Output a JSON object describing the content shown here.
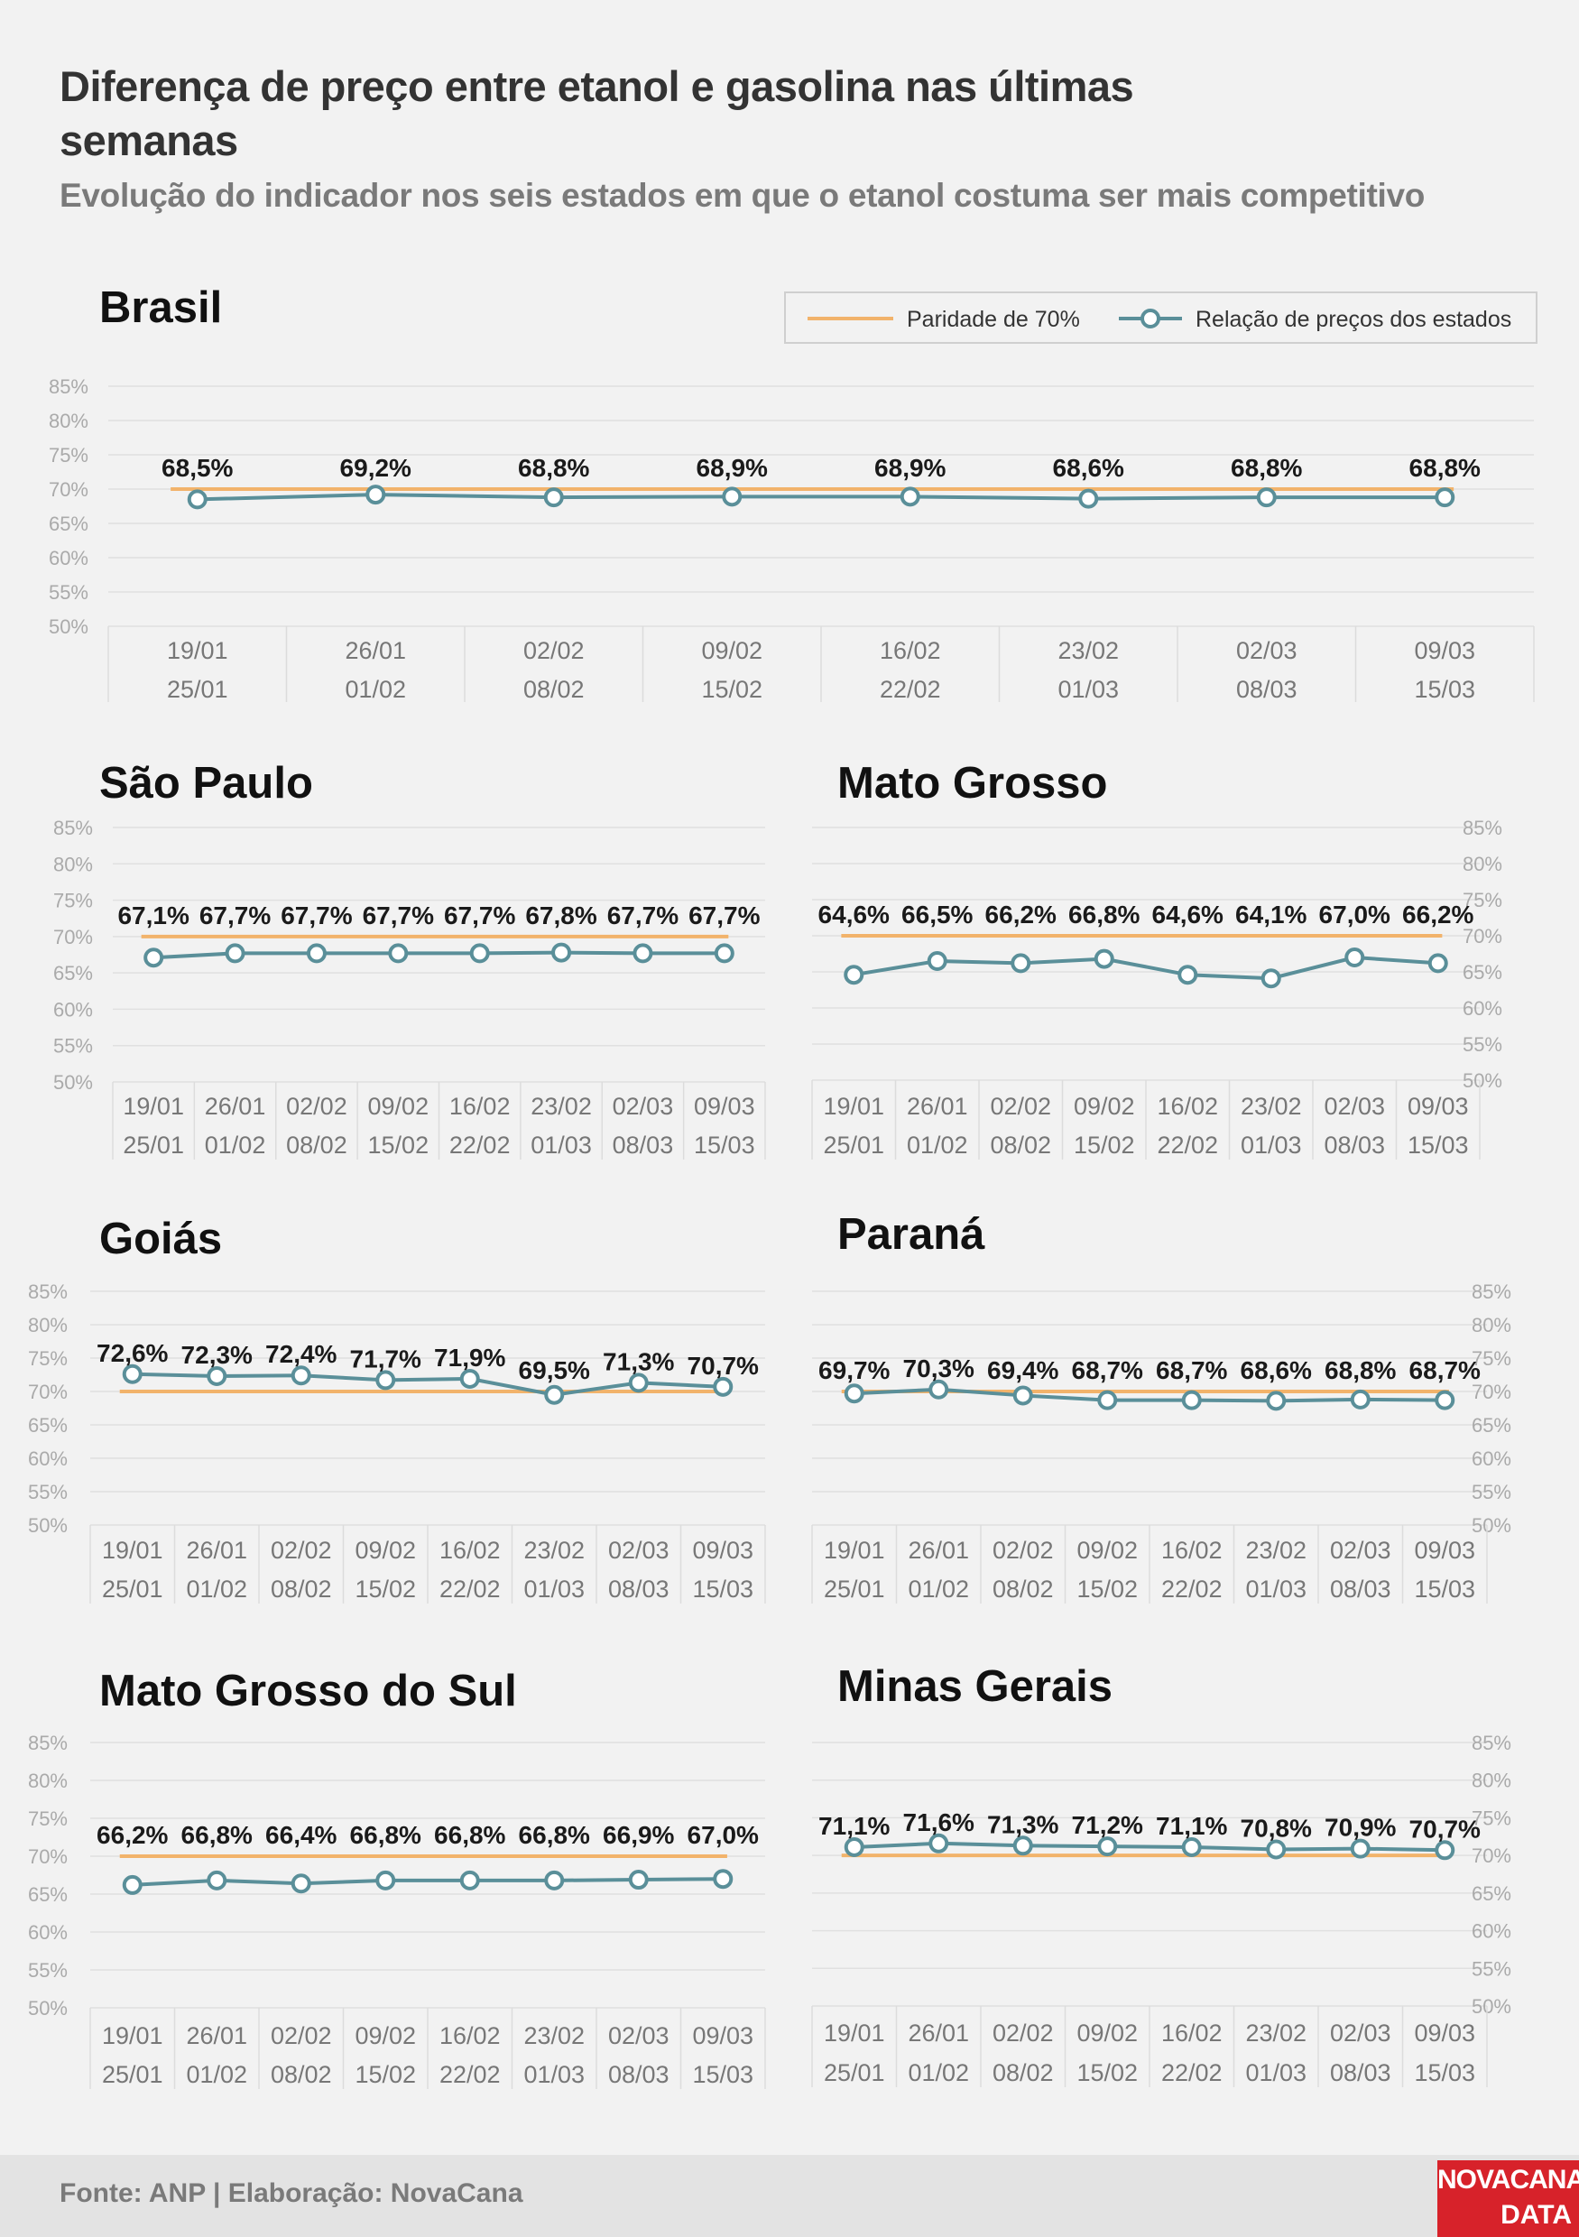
{
  "title": "Diferença de preço entre etanol e gasolina nas últimas semanas",
  "subtitle": "Evolução do indicador nos seis estados em que o etanol costuma ser mais competitivo",
  "legend": {
    "parity": "Paridade de 70%",
    "ratio": "Relação de preços dos estados"
  },
  "footer": {
    "source": "Fonte: ANP | Elaboração: NovaCana",
    "logo_line1": "NOVACANA",
    "logo_line2": "DATA"
  },
  "colors": {
    "parity_line": "#f2b36b",
    "ratio_line": "#5a8f99",
    "background": "#f2f2f2",
    "logo": "#d7222a"
  },
  "chart_data": [
    {
      "type": "line",
      "title": "Brasil",
      "categories": [
        "19/01 25/01",
        "26/01 01/02",
        "02/02 08/02",
        "09/02 15/02",
        "16/02 22/02",
        "23/02 01/03",
        "02/03 08/03",
        "09/03 15/03"
      ],
      "x_top": [
        "19/01",
        "26/01",
        "02/02",
        "09/02",
        "16/02",
        "23/02",
        "02/03",
        "09/03"
      ],
      "x_bottom": [
        "25/01",
        "01/02",
        "08/02",
        "15/02",
        "22/02",
        "01/03",
        "08/03",
        "15/03"
      ],
      "yticks": [
        "85%",
        "80%",
        "75%",
        "70%",
        "65%",
        "60%",
        "55%",
        "50%"
      ],
      "ylim": [
        50,
        85
      ],
      "parity": 70,
      "values": [
        68.5,
        69.2,
        68.8,
        68.9,
        68.9,
        68.6,
        68.8,
        68.8
      ],
      "labels": [
        "68,5%",
        "69,2%",
        "68,8%",
        "68,9%",
        "68,9%",
        "68,6%",
        "68,8%",
        "68,8%"
      ]
    },
    {
      "type": "line",
      "title": "São Paulo",
      "x_top": [
        "19/01",
        "26/01",
        "02/02",
        "09/02",
        "16/02",
        "23/02",
        "02/03",
        "09/03"
      ],
      "x_bottom": [
        "25/01",
        "01/02",
        "08/02",
        "15/02",
        "22/02",
        "01/03",
        "08/03",
        "15/03"
      ],
      "yticks": [
        "85%",
        "80%",
        "75%",
        "70%",
        "65%",
        "60%",
        "55%",
        "50%"
      ],
      "ylim": [
        50,
        85
      ],
      "parity": 70,
      "values": [
        67.1,
        67.7,
        67.7,
        67.7,
        67.7,
        67.8,
        67.7,
        67.7
      ],
      "labels": [
        "67,1%",
        "67,7%",
        "67,7%",
        "67,7%",
        "67,7%",
        "67,8%",
        "67,7%",
        "67,7%"
      ]
    },
    {
      "type": "line",
      "title": "Mato Grosso",
      "x_top": [
        "19/01",
        "26/01",
        "02/02",
        "09/02",
        "16/02",
        "23/02",
        "02/03",
        "09/03"
      ],
      "x_bottom": [
        "25/01",
        "01/02",
        "08/02",
        "15/02",
        "22/02",
        "01/03",
        "08/03",
        "15/03"
      ],
      "yticks": [
        "85%",
        "80%",
        "75%",
        "70%",
        "65%",
        "60%",
        "55%",
        "50%"
      ],
      "ylim": [
        50,
        85
      ],
      "parity": 70,
      "values": [
        64.6,
        66.5,
        66.2,
        66.8,
        64.6,
        64.1,
        67.0,
        66.2
      ],
      "labels": [
        "64,6%",
        "66,5%",
        "66,2%",
        "66,8%",
        "64,6%",
        "64,1%",
        "67,0%",
        "66,2%"
      ]
    },
    {
      "type": "line",
      "title": "Goiás",
      "x_top": [
        "19/01",
        "26/01",
        "02/02",
        "09/02",
        "16/02",
        "23/02",
        "02/03",
        "09/03"
      ],
      "x_bottom": [
        "25/01",
        "01/02",
        "08/02",
        "15/02",
        "22/02",
        "01/03",
        "08/03",
        "15/03"
      ],
      "yticks": [
        "85%",
        "80%",
        "75%",
        "70%",
        "65%",
        "60%",
        "55%",
        "50%"
      ],
      "ylim": [
        50,
        85
      ],
      "parity": 70,
      "values": [
        72.6,
        72.3,
        72.4,
        71.7,
        71.9,
        69.5,
        71.3,
        70.7
      ],
      "labels": [
        "72,6%",
        "72,3%",
        "72,4%",
        "71,7%",
        "71,9%",
        "69,5%",
        "71,3%",
        "70,7%"
      ]
    },
    {
      "type": "line",
      "title": "Paraná",
      "x_top": [
        "19/01",
        "26/01",
        "02/02",
        "09/02",
        "16/02",
        "23/02",
        "02/03",
        "09/03"
      ],
      "x_bottom": [
        "25/01",
        "01/02",
        "08/02",
        "15/02",
        "22/02",
        "01/03",
        "08/03",
        "15/03"
      ],
      "yticks": [
        "85%",
        "80%",
        "75%",
        "70%",
        "65%",
        "60%",
        "55%",
        "50%"
      ],
      "ylim": [
        50,
        85
      ],
      "parity": 70,
      "values": [
        69.7,
        70.3,
        69.4,
        68.7,
        68.7,
        68.6,
        68.8,
        68.7
      ],
      "labels": [
        "69,7%",
        "70,3%",
        "69,4%",
        "68,7%",
        "68,7%",
        "68,6%",
        "68,8%",
        "68,7%"
      ]
    },
    {
      "type": "line",
      "title": "Mato Grosso do Sul",
      "x_top": [
        "19/01",
        "26/01",
        "02/02",
        "09/02",
        "16/02",
        "23/02",
        "02/03",
        "09/03"
      ],
      "x_bottom": [
        "25/01",
        "01/02",
        "08/02",
        "15/02",
        "22/02",
        "01/03",
        "08/03",
        "15/03"
      ],
      "yticks": [
        "85%",
        "80%",
        "75%",
        "70%",
        "65%",
        "60%",
        "55%",
        "50%"
      ],
      "ylim": [
        50,
        85
      ],
      "parity": 70,
      "values": [
        66.2,
        66.8,
        66.4,
        66.8,
        66.8,
        66.8,
        66.9,
        67.0
      ],
      "labels": [
        "66,2%",
        "66,8%",
        "66,4%",
        "66,8%",
        "66,8%",
        "66,8%",
        "66,9%",
        "67,0%"
      ]
    },
    {
      "type": "line",
      "title": "Minas Gerais",
      "x_top": [
        "19/01",
        "26/01",
        "02/02",
        "09/02",
        "16/02",
        "23/02",
        "02/03",
        "09/03"
      ],
      "x_bottom": [
        "25/01",
        "01/02",
        "08/02",
        "15/02",
        "22/02",
        "01/03",
        "08/03",
        "15/03"
      ],
      "yticks": [
        "85%",
        "80%",
        "75%",
        "70%",
        "65%",
        "60%",
        "55%",
        "50%"
      ],
      "ylim": [
        50,
        85
      ],
      "parity": 70,
      "values": [
        71.1,
        71.6,
        71.3,
        71.2,
        71.1,
        70.8,
        70.9,
        70.7
      ],
      "labels": [
        "71,1%",
        "71,6%",
        "71,3%",
        "71,2%",
        "71,1%",
        "70,8%",
        "70,9%",
        "70,7%"
      ]
    }
  ]
}
